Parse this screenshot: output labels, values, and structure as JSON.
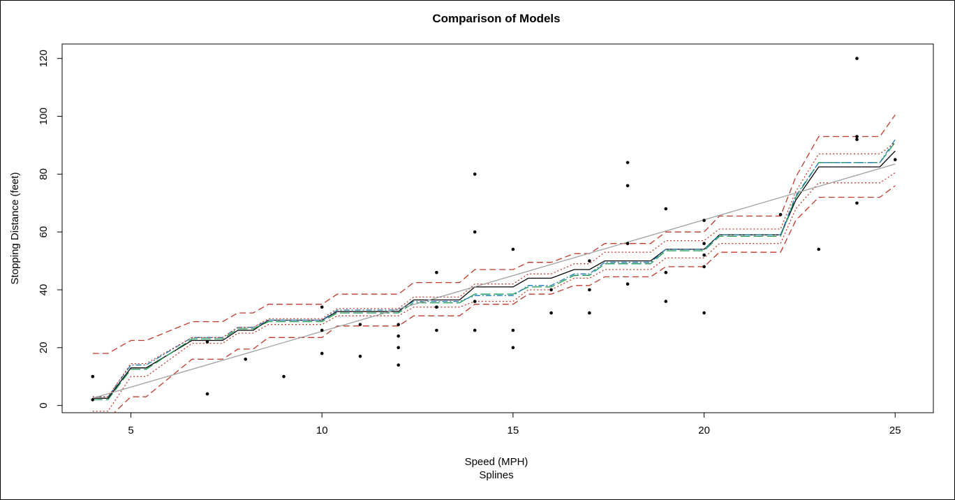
{
  "chart_data": {
    "type": "line",
    "title": "Comparison of Models",
    "xlabel": "Speed (MPH)",
    "subtitle": "Splines",
    "ylabel": "Stopping Distance (feet)",
    "xlim": [
      3.2,
      26.0
    ],
    "ylim": [
      -2.5,
      125.0
    ],
    "xticks": [
      5,
      10,
      15,
      20,
      25
    ],
    "yticks": [
      0,
      20,
      40,
      60,
      80,
      100,
      120
    ],
    "grid": false,
    "points": {
      "x": [
        4,
        4,
        7,
        7,
        8,
        9,
        10,
        10,
        10,
        11,
        11,
        12,
        12,
        12,
        12,
        13,
        13,
        13,
        13,
        14,
        14,
        14,
        14,
        15,
        15,
        15,
        16,
        16,
        17,
        17,
        17,
        18,
        18,
        18,
        18,
        19,
        19,
        19,
        20,
        20,
        20,
        20,
        20,
        22,
        23,
        24,
        24,
        24,
        24,
        25
      ],
      "y": [
        2,
        10,
        4,
        22,
        16,
        10,
        18,
        26,
        34,
        17,
        28,
        14,
        20,
        24,
        28,
        26,
        34,
        34,
        46,
        26,
        36,
        60,
        80,
        20,
        26,
        54,
        32,
        40,
        32,
        40,
        50,
        42,
        56,
        76,
        84,
        36,
        46,
        68,
        32,
        48,
        52,
        56,
        64,
        66,
        54,
        70,
        92,
        93,
        120,
        85
      ]
    },
    "series": [
      {
        "x": [
          4,
          4.4,
          5,
          5.4,
          6.6,
          7.4,
          7.8,
          8.2,
          8.6,
          9.4,
          10,
          10.4,
          11,
          11.6,
          12,
          12.4,
          13,
          13.6,
          14,
          14.6,
          15,
          15.4,
          16,
          16.6,
          17,
          17.4,
          18,
          18.6,
          19,
          19.6,
          20,
          20.4,
          21,
          21.6,
          22,
          22.4,
          23,
          23.6,
          24,
          24.6,
          25
        ],
        "y": [
          2.5,
          2.5,
          13.0,
          13.0,
          22.5,
          22.5,
          26.0,
          26.0,
          29.5,
          29.5,
          29.5,
          32.5,
          32.5,
          32.5,
          32.5,
          36.5,
          36.5,
          36.5,
          41.0,
          41.0,
          41.0,
          44.0,
          44.0,
          47.0,
          47.0,
          50.0,
          50.0,
          50.0,
          54.0,
          54.0,
          54.0,
          59.0,
          59.0,
          59.0,
          59.0,
          71.0,
          82.5,
          82.5,
          82.5,
          82.5,
          88.0
        ],
        "color": "#000000",
        "dash": "solid"
      },
      {
        "x": [
          4,
          4.4,
          5,
          5.4,
          6.6,
          7.4,
          7.8,
          8.2,
          8.6,
          9.4,
          10,
          10.4,
          11,
          11.6,
          12,
          12.4,
          13,
          13.6,
          14,
          14.6,
          15,
          15.4,
          16,
          16.6,
          17,
          17.4,
          18,
          18.6,
          19,
          19.6,
          20,
          20.4,
          21,
          21.6,
          22,
          22.4,
          23,
          23.6,
          24,
          24.6,
          25
        ],
        "y": [
          2.0,
          2.0,
          12.5,
          12.5,
          23.0,
          23.0,
          26.5,
          26.5,
          29.0,
          29.0,
          29.0,
          32.0,
          32.0,
          32.0,
          32.0,
          35.5,
          35.5,
          35.5,
          38.5,
          38.5,
          38.5,
          41.0,
          41.0,
          45.0,
          45.0,
          49.0,
          49.0,
          49.0,
          53.5,
          53.5,
          53.5,
          58.5,
          58.5,
          58.5,
          58.5,
          72.0,
          84.0,
          84.0,
          84.0,
          84.0,
          91.0
        ],
        "color": "#1a9850",
        "dash": "longdash"
      },
      {
        "x": [
          4,
          4.4,
          5,
          5.4,
          6.6,
          7.4,
          7.8,
          8.2,
          8.6,
          9.4,
          10,
          10.4,
          11,
          11.6,
          12,
          12.4,
          13,
          13.6,
          14,
          14.6,
          15,
          15.4,
          16,
          16.6,
          17,
          17.4,
          18,
          18.6,
          19,
          19.6,
          20,
          20.4,
          21,
          21.6,
          22,
          22.4,
          23,
          23.6,
          24,
          24.6,
          25
        ],
        "y": [
          3.0,
          3.0,
          14.0,
          14.0,
          23.5,
          23.5,
          27.0,
          27.0,
          29.5,
          29.5,
          29.5,
          33.0,
          33.0,
          33.0,
          33.0,
          36.0,
          36.0,
          36.0,
          38.0,
          38.0,
          38.0,
          41.5,
          41.5,
          45.5,
          45.5,
          49.5,
          49.5,
          49.5,
          54.0,
          54.0,
          54.0,
          59.0,
          59.0,
          59.0,
          59.0,
          72.5,
          84.0,
          84.0,
          84.0,
          84.0,
          92.0
        ],
        "color": "#1f78b4",
        "dash": "dotdash"
      },
      {
        "x": [
          4,
          4.4,
          5,
          5.4,
          6.6,
          7.4,
          7.8,
          8.2,
          8.6,
          9.4,
          10,
          10.4,
          11,
          11.6,
          12,
          12.4,
          13,
          13.6,
          14,
          14.6,
          15,
          15.4,
          16,
          16.6,
          17,
          17.4,
          18,
          18.6,
          19,
          19.6,
          20,
          20.4,
          21,
          21.6,
          22,
          22.4,
          23,
          23.6,
          24,
          24.6,
          25
        ],
        "y": [
          18.0,
          18.0,
          22.5,
          22.5,
          29.0,
          29.0,
          32.0,
          32.0,
          35.0,
          35.0,
          35.0,
          38.5,
          38.5,
          38.5,
          38.5,
          42.5,
          42.5,
          42.5,
          47.0,
          47.0,
          47.0,
          49.5,
          49.5,
          52.5,
          52.5,
          56.0,
          56.0,
          56.0,
          60.0,
          60.0,
          60.0,
          65.5,
          65.5,
          65.5,
          65.5,
          79.0,
          93.0,
          93.0,
          93.0,
          93.0,
          100.5
        ],
        "color": "#c0392b",
        "dash": "dashed"
      },
      {
        "x": [
          4,
          4.4,
          5,
          5.4,
          6.6,
          7.4,
          7.8,
          8.2,
          8.6,
          9.4,
          10,
          10.4,
          11,
          11.6,
          12,
          12.4,
          13,
          13.6,
          14,
          14.6,
          15,
          15.4,
          16,
          16.6,
          17,
          17.4,
          18,
          18.6,
          19,
          19.6,
          20,
          20.4,
          21,
          21.6,
          22,
          22.4,
          23,
          23.6,
          24,
          24.6,
          25
        ],
        "y": [
          -4.5,
          -4.5,
          3.0,
          3.0,
          16.0,
          16.0,
          19.5,
          19.5,
          23.5,
          23.5,
          23.5,
          27.5,
          27.5,
          27.5,
          27.5,
          31.0,
          31.0,
          31.0,
          35.0,
          35.0,
          35.0,
          38.5,
          38.5,
          41.5,
          41.5,
          44.5,
          44.5,
          44.5,
          48.0,
          48.0,
          48.0,
          53.0,
          53.0,
          53.0,
          53.0,
          64.0,
          72.0,
          72.0,
          72.0,
          72.0,
          76.0
        ],
        "color": "#c0392b",
        "dash": "dashed"
      },
      {
        "x": [
          4,
          4.4,
          5,
          5.4,
          6.6,
          7.4,
          7.8,
          8.2,
          8.6,
          9.4,
          10,
          10.4,
          11,
          11.6,
          12,
          12.4,
          13,
          13.6,
          14,
          14.6,
          15,
          15.4,
          16,
          16.6,
          17,
          17.4,
          18,
          18.6,
          19,
          19.6,
          20,
          20.4,
          21,
          21.6,
          22,
          22.4,
          23,
          23.6,
          24,
          24.6,
          25
        ],
        "y": [
          3.0,
          3.0,
          14.5,
          14.5,
          23.5,
          23.5,
          27.0,
          27.0,
          30.0,
          30.0,
          30.0,
          33.5,
          33.5,
          33.5,
          33.5,
          37.5,
          37.5,
          37.5,
          42.0,
          42.0,
          42.0,
          45.5,
          45.5,
          49.0,
          49.0,
          53.0,
          53.0,
          53.0,
          57.0,
          57.0,
          57.0,
          61.0,
          61.0,
          61.0,
          61.0,
          74.0,
          87.0,
          87.0,
          87.0,
          87.0,
          91.0
        ],
        "color": "#c0392b",
        "dash": "dotted"
      },
      {
        "x": [
          4,
          4.4,
          5,
          5.4,
          6.6,
          7.4,
          7.8,
          8.2,
          8.6,
          9.4,
          10,
          10.4,
          11,
          11.6,
          12,
          12.4,
          13,
          13.6,
          14,
          14.6,
          15,
          15.4,
          16,
          16.6,
          17,
          17.4,
          18,
          18.6,
          19,
          19.6,
          20,
          20.4,
          21,
          21.6,
          22,
          22.4,
          23,
          23.6,
          24,
          24.6,
          25
        ],
        "y": [
          -2.0,
          -2.0,
          10.0,
          10.0,
          21.5,
          21.5,
          25.0,
          25.0,
          28.0,
          28.0,
          28.0,
          31.0,
          31.0,
          31.0,
          31.0,
          34.0,
          34.0,
          34.0,
          36.0,
          36.0,
          36.0,
          40.0,
          40.0,
          44.0,
          44.0,
          47.0,
          47.0,
          47.0,
          51.0,
          51.0,
          51.0,
          56.0,
          56.0,
          56.0,
          56.0,
          68.0,
          77.0,
          77.0,
          77.0,
          77.0,
          80.5
        ],
        "color": "#c0392b",
        "dash": "dotted"
      },
      {
        "x": [
          4,
          25
        ],
        "y": [
          2.5,
          83.5
        ],
        "color": "#a0a0a0",
        "dash": "solid"
      }
    ]
  }
}
